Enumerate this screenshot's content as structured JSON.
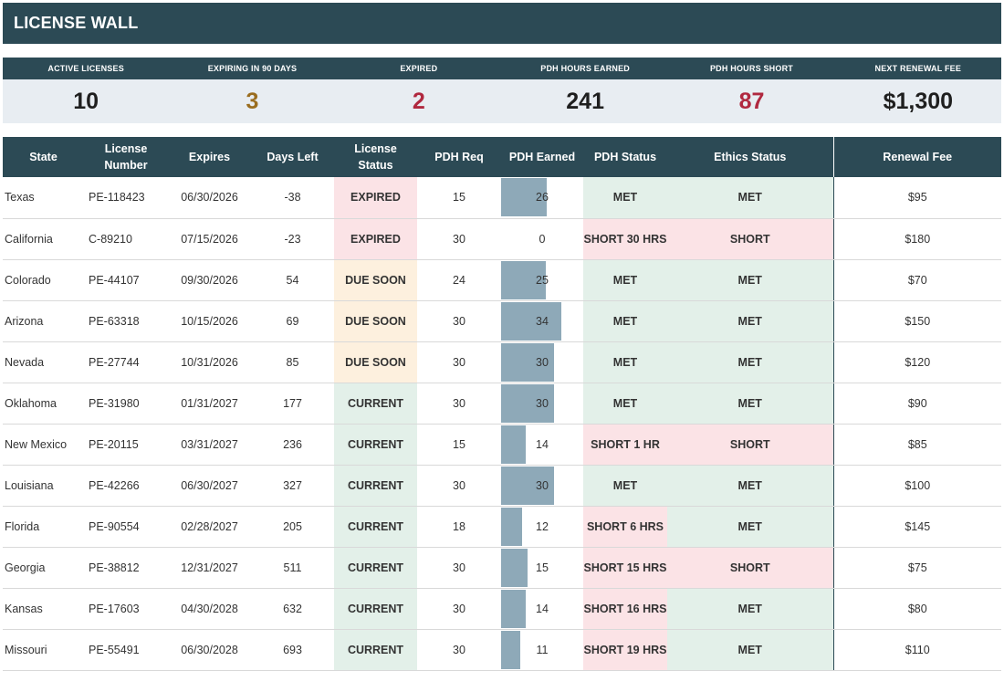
{
  "title": "LICENSE WALL",
  "kpis": [
    {
      "label": "ACTIVE LICENSES",
      "value": "10",
      "color": "#1f1f1f"
    },
    {
      "label": "EXPIRING IN 90 DAYS",
      "value": "3",
      "color": "#9a6d1f"
    },
    {
      "label": "EXPIRED",
      "value": "2",
      "color": "#b0283f"
    },
    {
      "label": "PDH HOURS EARNED",
      "value": "241",
      "color": "#1f1f1f"
    },
    {
      "label": "PDH HOURS SHORT",
      "value": "87",
      "color": "#b0283f"
    },
    {
      "label": "NEXT RENEWAL FEE",
      "value": "$1,300",
      "color": "#1f1f1f"
    }
  ],
  "columns": [
    "State",
    "License Number",
    "Expires",
    "Days Left",
    "License Status",
    "PDH Req",
    "PDH Earned",
    "PDH Status",
    "Ethics Status",
    "Renewal Fee"
  ],
  "rows": [
    {
      "state": "Texas",
      "license": "PE-118423",
      "expires": "06/30/2026",
      "days": "-38",
      "status": "EXPIRED",
      "req": "15",
      "earned": "26",
      "earned_frac": 0.76,
      "pdh_status": "MET",
      "ethics": "MET",
      "fee": "$95"
    },
    {
      "state": "California",
      "license": "C-89210",
      "expires": "07/15/2026",
      "days": "-23",
      "status": "EXPIRED",
      "req": "30",
      "earned": "0",
      "earned_frac": 0,
      "pdh_status": "SHORT 30 HRS",
      "ethics": "SHORT",
      "fee": "$180"
    },
    {
      "state": "Colorado",
      "license": "PE-44107",
      "expires": "09/30/2026",
      "days": "54",
      "status": "DUE SOON",
      "req": "24",
      "earned": "25",
      "earned_frac": 0.735,
      "pdh_status": "MET",
      "ethics": "MET",
      "fee": "$70"
    },
    {
      "state": "Arizona",
      "license": "PE-63318",
      "expires": "10/15/2026",
      "days": "69",
      "status": "DUE SOON",
      "req": "30",
      "earned": "34",
      "earned_frac": 1.0,
      "pdh_status": "MET",
      "ethics": "MET",
      "fee": "$150"
    },
    {
      "state": "Nevada",
      "license": "PE-27744",
      "expires": "10/31/2026",
      "days": "85",
      "status": "DUE SOON",
      "req": "30",
      "earned": "30",
      "earned_frac": 0.88,
      "pdh_status": "MET",
      "ethics": "MET",
      "fee": "$120"
    },
    {
      "state": "Oklahoma",
      "license": "PE-31980",
      "expires": "01/31/2027",
      "days": "177",
      "status": "CURRENT",
      "req": "30",
      "earned": "30",
      "earned_frac": 0.88,
      "pdh_status": "MET",
      "ethics": "MET",
      "fee": "$90"
    },
    {
      "state": "New Mexico",
      "license": "PE-20115",
      "expires": "03/31/2027",
      "days": "236",
      "status": "CURRENT",
      "req": "15",
      "earned": "14",
      "earned_frac": 0.41,
      "pdh_status": "SHORT 1 HR",
      "ethics": "SHORT",
      "fee": "$85"
    },
    {
      "state": "Louisiana",
      "license": "PE-42266",
      "expires": "06/30/2027",
      "days": "327",
      "status": "CURRENT",
      "req": "30",
      "earned": "30",
      "earned_frac": 0.88,
      "pdh_status": "MET",
      "ethics": "MET",
      "fee": "$100"
    },
    {
      "state": "Florida",
      "license": "PE-90554",
      "expires": "02/28/2027",
      "days": "205",
      "status": "CURRENT",
      "req": "18",
      "earned": "12",
      "earned_frac": 0.35,
      "pdh_status": "SHORT 6 HRS",
      "ethics": "MET",
      "fee": "$145"
    },
    {
      "state": "Georgia",
      "license": "PE-38812",
      "expires": "12/31/2027",
      "days": "511",
      "status": "CURRENT",
      "req": "30",
      "earned": "15",
      "earned_frac": 0.44,
      "pdh_status": "SHORT 15 HRS",
      "ethics": "SHORT",
      "fee": "$75"
    },
    {
      "state": "Kansas",
      "license": "PE-17603",
      "expires": "04/30/2028",
      "days": "632",
      "status": "CURRENT",
      "req": "30",
      "earned": "14",
      "earned_frac": 0.41,
      "pdh_status": "SHORT 16 HRS",
      "ethics": "MET",
      "fee": "$80"
    },
    {
      "state": "Missouri",
      "license": "PE-55491",
      "expires": "06/30/2028",
      "days": "693",
      "status": "CURRENT",
      "req": "30",
      "earned": "11",
      "earned_frac": 0.32,
      "pdh_status": "SHORT 19 HRS",
      "ethics": "MET",
      "fee": "$110"
    }
  ]
}
